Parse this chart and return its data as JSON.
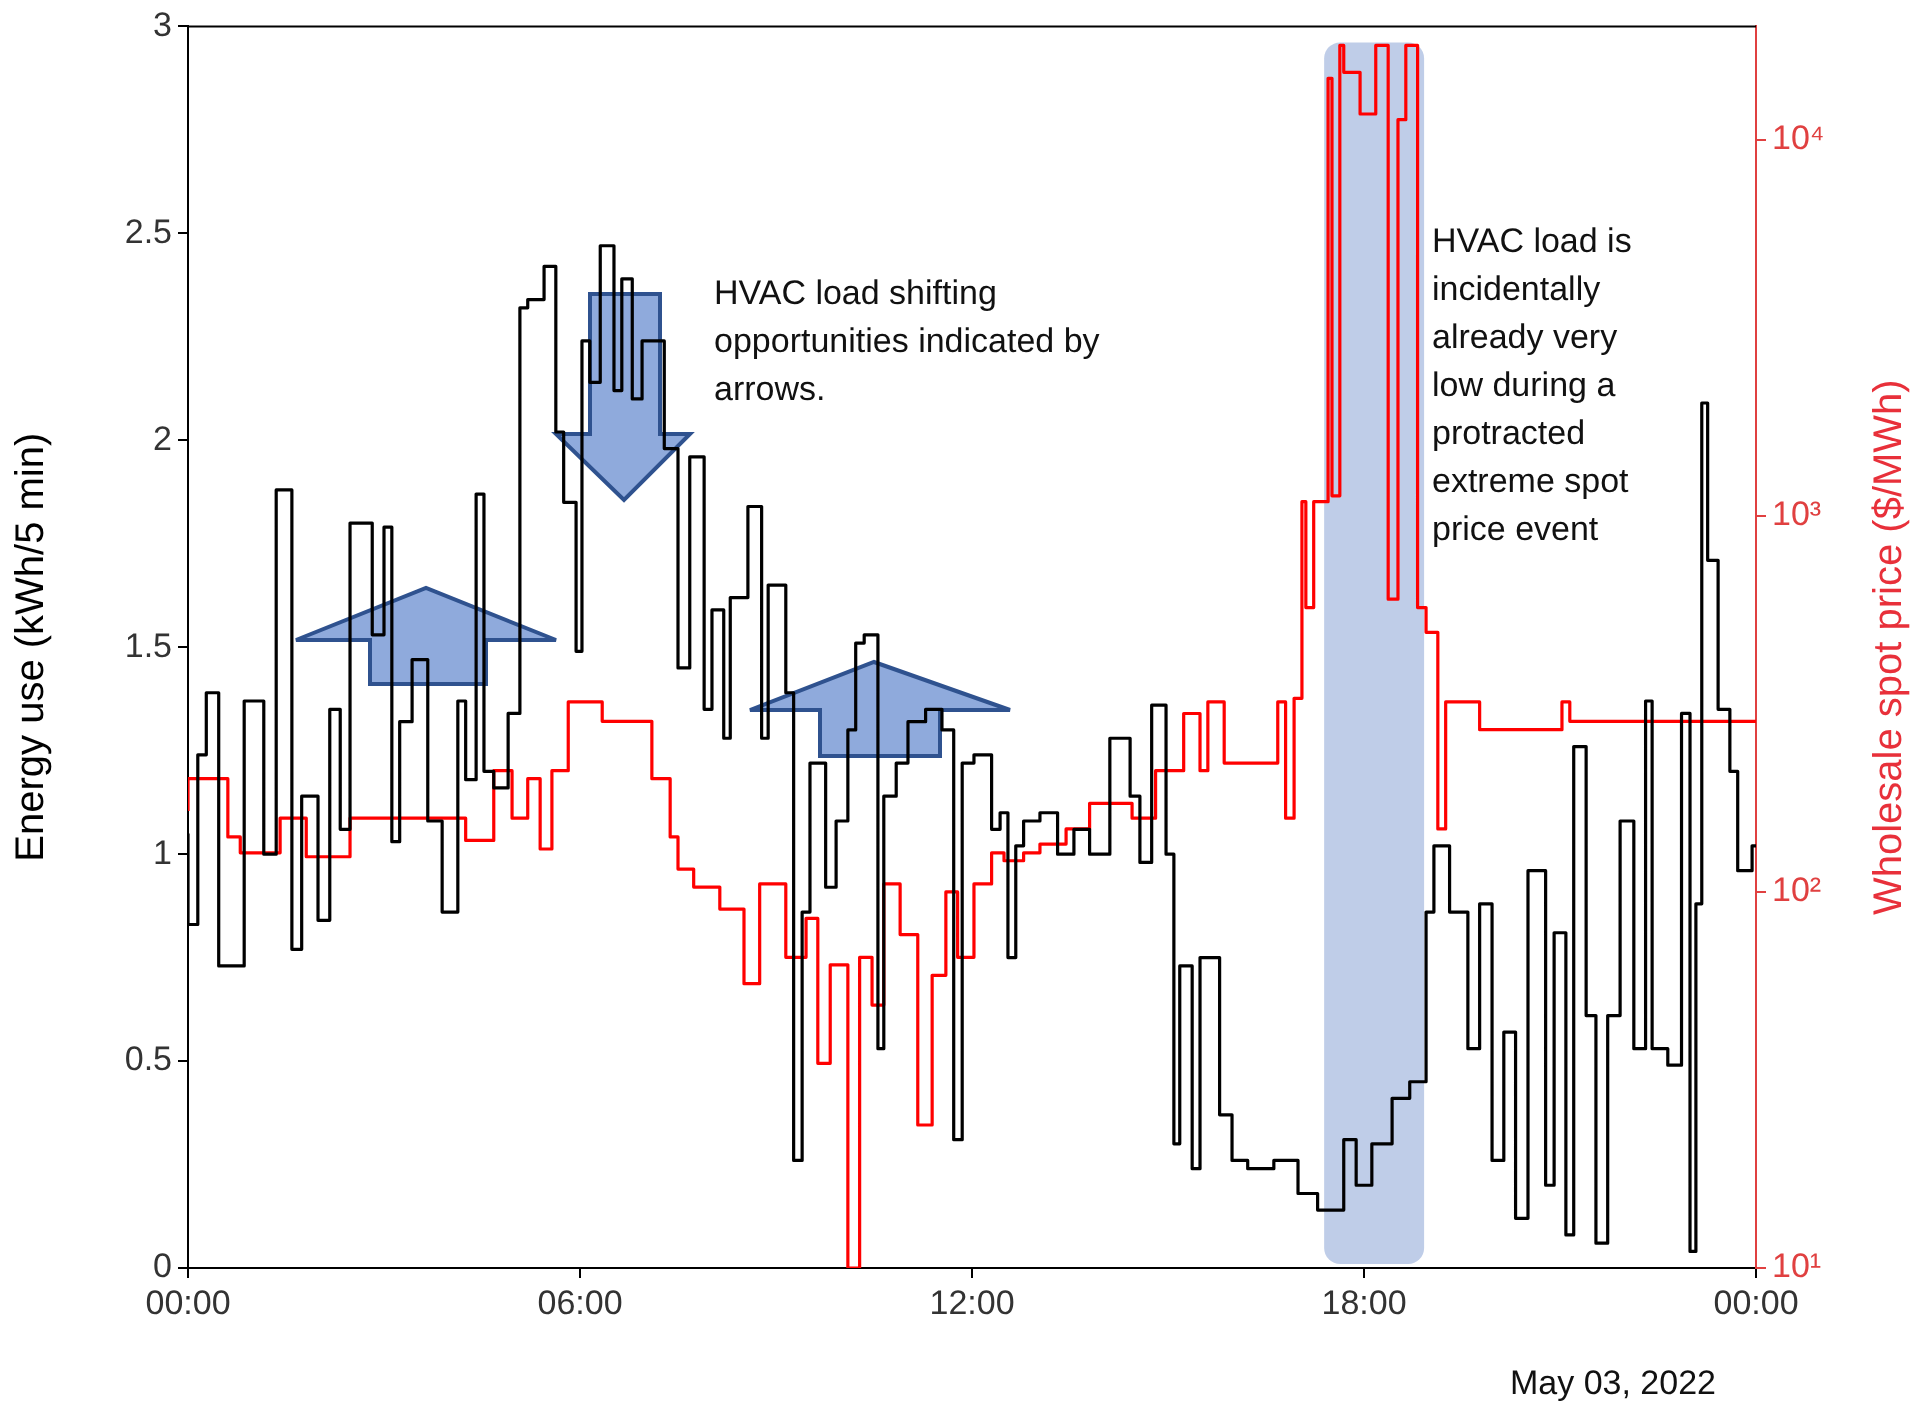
{
  "chart_data": {
    "type": "step",
    "ylabel": "Energy use (kWh/5 min)",
    "y2label": "Wholesale spot price ($/MWh)",
    "xlim": [
      0,
      24
    ],
    "xticks": [
      {
        "value": 0,
        "label": "00:00"
      },
      {
        "value": 6,
        "label": "06:00"
      },
      {
        "value": 12,
        "label": "12:00"
      },
      {
        "value": 18,
        "label": "18:00"
      },
      {
        "value": 24,
        "label": "00:00"
      }
    ],
    "ylim": [
      0,
      3
    ],
    "yticks": [
      0,
      0.5,
      1,
      1.5,
      2,
      2.5,
      3
    ],
    "y2lim": [
      10,
      20000
    ],
    "y2ticks": [
      {
        "value": 10,
        "label": "10¹"
      },
      {
        "value": 100,
        "label": "10²"
      },
      {
        "value": 1000,
        "label": "10³"
      },
      {
        "value": 10000,
        "label": "10⁴"
      }
    ],
    "log": "y2",
    "bands": [
      {
        "axis": "x",
        "from": 17.39,
        "to": 18.92,
        "color": "#b4c4e4"
      }
    ],
    "annotations": [
      "HVAC load shifting opportunities indicated by arrows.",
      "HVAC load is incidentally already very low during a protracted extreme spot price event",
      "May 03, 2022"
    ],
    "series": [
      {
        "color": "#000000",
        "x": [
          0,
          0.15,
          0.28,
          0.47,
          0.86,
          1.16,
          1.35,
          1.59,
          1.74,
          1.99,
          2.17,
          2.33,
          2.48,
          2.82,
          3.0,
          3.12,
          3.24,
          3.43,
          3.67,
          3.89,
          4.13,
          4.25,
          4.41,
          4.53,
          4.68,
          4.9,
          5.08,
          5.2,
          5.45,
          5.63,
          5.75,
          5.94,
          6.03,
          6.15,
          6.31,
          6.52,
          6.64,
          6.8,
          6.95,
          7.29,
          7.5,
          7.68,
          7.9,
          8.02,
          8.2,
          8.3,
          8.57,
          8.78,
          8.88,
          9.15,
          9.27,
          9.4,
          9.52,
          9.76,
          9.92,
          10.1,
          10.22,
          10.35,
          10.56,
          10.65,
          10.84,
          11.02,
          11.29,
          11.54,
          11.72,
          11.85,
          12.03,
          12.3,
          12.43,
          12.55,
          12.67,
          12.79,
          13.04,
          13.31,
          13.56,
          13.8,
          14.11,
          14.42,
          14.57,
          14.75,
          14.97,
          15.09,
          15.18,
          15.37,
          15.49,
          15.79,
          15.98,
          16.22,
          16.62,
          16.99,
          17.29,
          17.69,
          17.88,
          18.12,
          18.43,
          18.7,
          18.95,
          19.07,
          19.31,
          19.59,
          19.77,
          19.96,
          20.14,
          20.32,
          20.51,
          20.78,
          20.91,
          21.09,
          21.21,
          21.4,
          21.55,
          21.73,
          21.92,
          22.13,
          22.31,
          22.41,
          22.65,
          22.86,
          22.99,
          23.08,
          23.17,
          23.26,
          23.42,
          23.6,
          23.72,
          23.94,
          24
        ],
        "values": [
          1.05,
          0.83,
          1.24,
          1.39,
          0.73,
          1.37,
          1.0,
          1.88,
          0.77,
          1.14,
          0.84,
          1.35,
          1.06,
          1.8,
          1.53,
          1.79,
          1.03,
          1.32,
          1.47,
          1.08,
          0.86,
          1.37,
          1.18,
          1.87,
          1.2,
          1.16,
          1.34,
          2.32,
          2.34,
          2.42,
          2.02,
          1.85,
          1.49,
          2.24,
          2.14,
          2.47,
          2.12,
          2.39,
          2.1,
          2.24,
          1.98,
          1.45,
          1.96,
          1.35,
          1.59,
          1.28,
          1.62,
          1.84,
          1.28,
          1.65,
          1.39,
          0.26,
          0.86,
          1.22,
          0.92,
          1.08,
          1.3,
          1.51,
          1.53,
          0.53,
          1.14,
          1.22,
          1.32,
          1.35,
          1.3,
          0.31,
          1.22,
          1.24,
          1.06,
          1.1,
          0.75,
          1.02,
          1.08,
          1.1,
          1.0,
          1.06,
          1.0,
          1.28,
          1.14,
          0.98,
          1.36,
          1.0,
          0.3,
          0.73,
          0.24,
          0.75,
          0.37,
          0.26,
          0.24,
          0.26,
          0.18,
          0.14,
          0.31,
          0.2,
          0.3,
          0.41,
          0.45,
          0.86,
          1.02,
          0.86,
          0.53,
          0.88,
          0.26,
          0.57,
          0.12,
          0.96,
          0.2,
          0.81,
          0.08,
          1.26,
          0.61,
          0.06,
          0.61,
          1.08,
          0.53,
          1.37,
          0.53,
          0.49,
          1.34,
          0.04,
          0.88,
          2.09,
          1.71,
          1.35,
          1.2,
          0.96,
          1.02
        ]
      },
      {
        "color": "#ff0000",
        "axis": "y2",
        "x": [
          0,
          0.61,
          0.8,
          1.41,
          1.81,
          2.48,
          4.25,
          4.68,
          4.96,
          5.2,
          5.39,
          5.57,
          5.82,
          6.34,
          7.1,
          7.38,
          7.5,
          7.74,
          8.14,
          8.51,
          8.75,
          9.15,
          9.46,
          9.64,
          9.83,
          10.1,
          10.28,
          10.47,
          10.65,
          10.9,
          11.17,
          11.39,
          11.6,
          11.78,
          12.03,
          12.3,
          12.49,
          12.79,
          13.04,
          13.44,
          13.8,
          14.45,
          14.81,
          15.24,
          15.49,
          15.61,
          15.86,
          16.68,
          16.8,
          16.93,
          17.05,
          17.11,
          17.23,
          17.45,
          17.51,
          17.63,
          17.69,
          17.94,
          18.18,
          18.37,
          18.52,
          18.64,
          18.82,
          18.95,
          19.13,
          19.25,
          19.77,
          21.03,
          21.15,
          23.97,
          24
        ],
        "values": [
          164,
          200,
          140,
          127,
          157,
          124,
          157,
          137,
          210,
          157,
          200,
          130,
          210,
          320,
          284,
          200,
          140,
          115,
          103,
          90,
          57,
          105,
          67,
          85,
          35,
          64,
          10,
          67,
          50,
          105,
          77,
          24,
          60,
          100,
          67,
          105,
          127,
          121,
          127,
          134,
          147,
          172,
          157,
          210,
          298,
          210,
          320,
          220,
          320,
          157,
          327,
          1090,
          570,
          1090,
          14550,
          1130,
          17800,
          15100,
          11700,
          17800,
          600,
          11300,
          17800,
          570,
          490,
          147,
          320,
          270,
          320,
          284,
          284
        ]
      }
    ]
  }
}
